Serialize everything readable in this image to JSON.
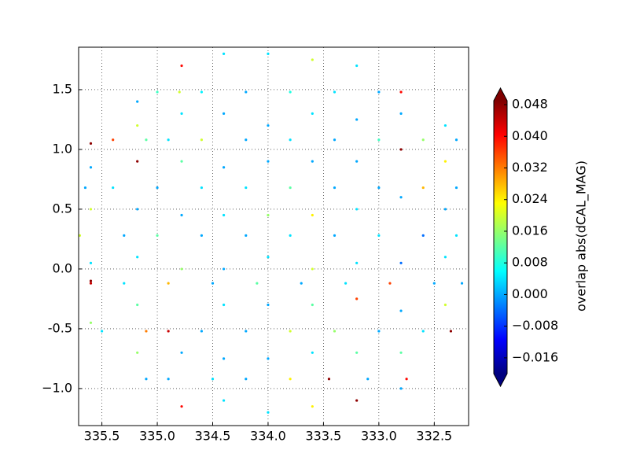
{
  "chart_data": {
    "type": "scatter",
    "colormap": "jet",
    "colorbar_label": "overlap abs(dCAL_MAG)",
    "xlim": [
      335.71,
      332.19
    ],
    "ylim": [
      -1.31,
      1.855
    ],
    "clim": [
      -0.02,
      0.049
    ],
    "xticks": [
      335.5,
      {
        "value": 335,
        "label": "335.0"
      },
      334.5,
      {
        "value": 334,
        "label": "334.0"
      },
      333.5,
      {
        "value": 333,
        "label": "333.0"
      },
      332.5
    ],
    "yticks": [
      1.5,
      {
        "value": 1,
        "label": "1.0"
      },
      0.5,
      {
        "value": 0,
        "label": "0.0"
      },
      -0.5,
      {
        "value": -1,
        "label": "−1.0"
      }
    ],
    "cticks": [
      0.048,
      {
        "value": 0.04,
        "label": "0.040"
      },
      0.032,
      0.024,
      0.016,
      0.008,
      {
        "value": 0,
        "label": "0.000"
      },
      {
        "value": -0.008,
        "label": "−0.008"
      },
      {
        "value": -0.016,
        "label": "−0.016"
      }
    ],
    "grid": true,
    "x": [
      335.0,
      334.8,
      334.6,
      334.2,
      333.8,
      333.4,
      333.0,
      332.8,
      335.4,
      335.1,
      334.9,
      334.6,
      334.2,
      333.8,
      333.4,
      333.0,
      332.6,
      332.3,
      335.65,
      335.4,
      335.0,
      334.6,
      334.2,
      333.8,
      333.4,
      333.0,
      332.6,
      332.3,
      335.7,
      335.3,
      335.0,
      334.6,
      334.2,
      333.8,
      333.4,
      333.0,
      332.6,
      332.3,
      335.6,
      335.3,
      334.9,
      334.5,
      334.1,
      333.7,
      333.3,
      332.9,
      332.5,
      332.25,
      335.5,
      335.1,
      334.9,
      334.6,
      334.2,
      333.8,
      333.4,
      333.0,
      332.6,
      332.35,
      335.1,
      334.9,
      334.5,
      334.2,
      333.8,
      333.45,
      333.1,
      332.75,
      335.6,
      335.6,
      335.6,
      335.6,
      335.6,
      335.6,
      335.18,
      335.18,
      335.18,
      335.18,
      335.18,
      335.18,
      335.18,
      334.78,
      334.78,
      334.78,
      334.78,
      334.78,
      334.78,
      334.78,
      334.4,
      334.4,
      334.4,
      334.4,
      334.4,
      334.4,
      334.4,
      334.4,
      334.0,
      334.0,
      334.0,
      334.0,
      334.0,
      334.0,
      334.0,
      334.0,
      333.6,
      333.6,
      333.6,
      333.6,
      333.6,
      333.6,
      333.6,
      333.6,
      333.2,
      333.2,
      333.2,
      333.2,
      333.2,
      333.2,
      333.2,
      333.2,
      332.8,
      332.8,
      332.8,
      332.8,
      332.8,
      332.8,
      332.8,
      332.4,
      332.4,
      332.4,
      332.4,
      332.4
    ],
    "y": [
      1.48,
      1.48,
      1.48,
      1.48,
      1.48,
      1.48,
      1.48,
      1.48,
      1.08,
      1.08,
      1.08,
      1.08,
      1.08,
      1.08,
      1.08,
      1.08,
      1.08,
      1.08,
      0.68,
      0.68,
      0.68,
      0.68,
      0.68,
      0.68,
      0.68,
      0.68,
      0.68,
      0.68,
      0.28,
      0.28,
      0.28,
      0.28,
      0.28,
      0.28,
      0.28,
      0.28,
      0.28,
      0.28,
      -0.12,
      -0.12,
      -0.12,
      -0.12,
      -0.12,
      -0.12,
      -0.12,
      -0.12,
      -0.12,
      -0.12,
      -0.52,
      -0.52,
      -0.52,
      -0.52,
      -0.52,
      -0.52,
      -0.52,
      -0.52,
      -0.52,
      -0.52,
      -0.92,
      -0.92,
      -0.92,
      -0.92,
      -0.92,
      -0.92,
      -0.92,
      -0.92,
      1.05,
      0.85,
      0.5,
      0.05,
      -0.1,
      -0.45,
      1.4,
      1.2,
      0.9,
      0.5,
      0.1,
      -0.3,
      -0.7,
      1.7,
      1.3,
      0.9,
      0.45,
      0.0,
      -0.7,
      -1.15,
      1.8,
      1.3,
      0.85,
      0.45,
      0.0,
      -0.3,
      -0.75,
      -1.1,
      1.8,
      1.2,
      0.9,
      0.45,
      0.1,
      -0.3,
      -0.75,
      -1.2,
      1.75,
      1.3,
      0.9,
      0.45,
      0.0,
      -0.3,
      -0.7,
      -1.15,
      1.7,
      1.25,
      0.9,
      0.5,
      0.05,
      -0.25,
      -0.7,
      -1.1,
      1.3,
      1.0,
      0.6,
      0.05,
      -0.35,
      -0.7,
      -1.0,
      1.2,
      0.9,
      0.5,
      0.1,
      -0.3
    ],
    "values": [
      0.01,
      0.02,
      0.005,
      0.0,
      0.008,
      0.004,
      0.0,
      0.04,
      0.036,
      0.012,
      0.004,
      0.02,
      0.0,
      0.004,
      0.0,
      0.01,
      0.016,
      0.0,
      0.0,
      0.004,
      0.0,
      0.004,
      0.004,
      0.012,
      0.0,
      0.0,
      0.028,
      0.0,
      0.02,
      0.0,
      0.012,
      0.0,
      0.0,
      0.004,
      0.0,
      0.004,
      -0.004,
      0.004,
      0.044,
      0.004,
      0.028,
      0.0,
      0.012,
      0.0,
      0.004,
      0.036,
      0.0,
      0.0,
      0.004,
      0.032,
      0.044,
      0.0,
      0.0,
      0.02,
      0.016,
      0.0,
      0.004,
      0.048,
      0.0,
      0.0,
      0.004,
      0.0,
      0.024,
      0.048,
      0.0,
      0.04,
      0.048,
      0.0,
      0.02,
      0.004,
      0.048,
      0.016,
      0.0,
      0.02,
      0.048,
      0.0,
      0.004,
      0.012,
      0.016,
      0.04,
      0.004,
      0.012,
      0.0,
      0.016,
      0.0,
      0.04,
      0.004,
      0.0,
      0.0,
      0.004,
      0.0,
      0.004,
      0.0,
      0.004,
      0.004,
      0.0,
      0.0,
      0.016,
      0.004,
      0.0,
      0.0,
      0.004,
      0.02,
      0.004,
      0.0,
      0.024,
      0.02,
      0.012,
      0.004,
      0.024,
      0.004,
      0.0,
      0.0,
      0.004,
      0.004,
      0.036,
      0.012,
      0.048,
      0.0,
      0.048,
      0.0,
      -0.004,
      0.0,
      0.012,
      0.0,
      0.004,
      0.024,
      0.0,
      0.004,
      0.02
    ]
  }
}
